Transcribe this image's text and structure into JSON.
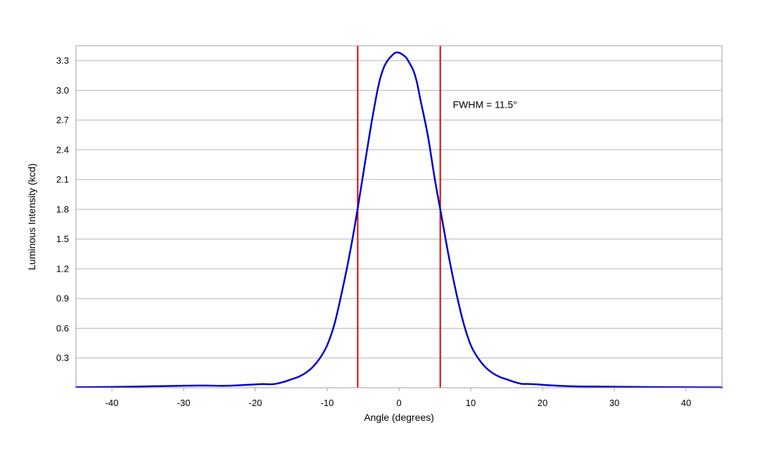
{
  "chart_data": {
    "type": "line",
    "title": "",
    "xlabel": "Angle (degrees)",
    "ylabel": "Luminous Intensity (kcd)",
    "xlim": [
      -45,
      45
    ],
    "ylim": [
      0,
      3.45
    ],
    "grid": "horizontal",
    "legend": "none",
    "xticks": [
      -40,
      -30,
      -20,
      -10,
      0,
      10,
      20,
      30,
      40
    ],
    "xtick_labels": [
      "-40",
      "-30",
      "-20",
      "-10",
      "0",
      "10",
      "20",
      "30",
      "40"
    ],
    "yticks": [
      0.3,
      0.6,
      0.9,
      1.2,
      1.5,
      1.8,
      2.1,
      2.4,
      2.7,
      3.0,
      3.3
    ],
    "ytick_labels": [
      "0.3",
      "0.6",
      "0.9",
      "1.2",
      "1.5",
      "1.8",
      "2.1",
      "2.4",
      "2.7",
      "3.0",
      "3.3"
    ],
    "series": [
      {
        "color": "#0000cc",
        "x": [
          -45,
          -40,
          -35,
          -30,
          -27,
          -24,
          -21,
          -19,
          -17.5,
          -16,
          -15,
          -14,
          -13,
          -12,
          -11,
          -10,
          -9,
          -8,
          -7,
          -6,
          -5,
          -4,
          -3,
          -2.5,
          -2,
          -1.5,
          -1,
          -0.5,
          0,
          0.5,
          1,
          1.5,
          2,
          2.5,
          3,
          4,
          5,
          6,
          7,
          8,
          9,
          10,
          11,
          12,
          13,
          14,
          15,
          16,
          17,
          18,
          19,
          21,
          24,
          27,
          30,
          35,
          40,
          45
        ],
        "y": [
          0.005,
          0.008,
          0.014,
          0.02,
          0.022,
          0.02,
          0.03,
          0.037,
          0.036,
          0.06,
          0.085,
          0.11,
          0.15,
          0.21,
          0.3,
          0.43,
          0.64,
          0.95,
          1.3,
          1.7,
          2.15,
          2.6,
          3.0,
          3.15,
          3.25,
          3.31,
          3.35,
          3.38,
          3.38,
          3.36,
          3.33,
          3.27,
          3.2,
          3.08,
          2.9,
          2.55,
          2.1,
          1.7,
          1.3,
          0.95,
          0.65,
          0.43,
          0.3,
          0.21,
          0.15,
          0.11,
          0.085,
          0.06,
          0.04,
          0.038,
          0.035,
          0.025,
          0.015,
          0.012,
          0.01,
          0.007,
          0.005,
          0.004
        ]
      }
    ],
    "reference_lines": [
      {
        "axis": "x",
        "value": -5.75,
        "color": "#dd0000"
      },
      {
        "axis": "x",
        "value": 5.75,
        "color": "#dd0000"
      }
    ],
    "annotations": [
      {
        "text": "FWHM = 11.5°",
        "x": 7.5,
        "y": 2.82
      }
    ]
  }
}
